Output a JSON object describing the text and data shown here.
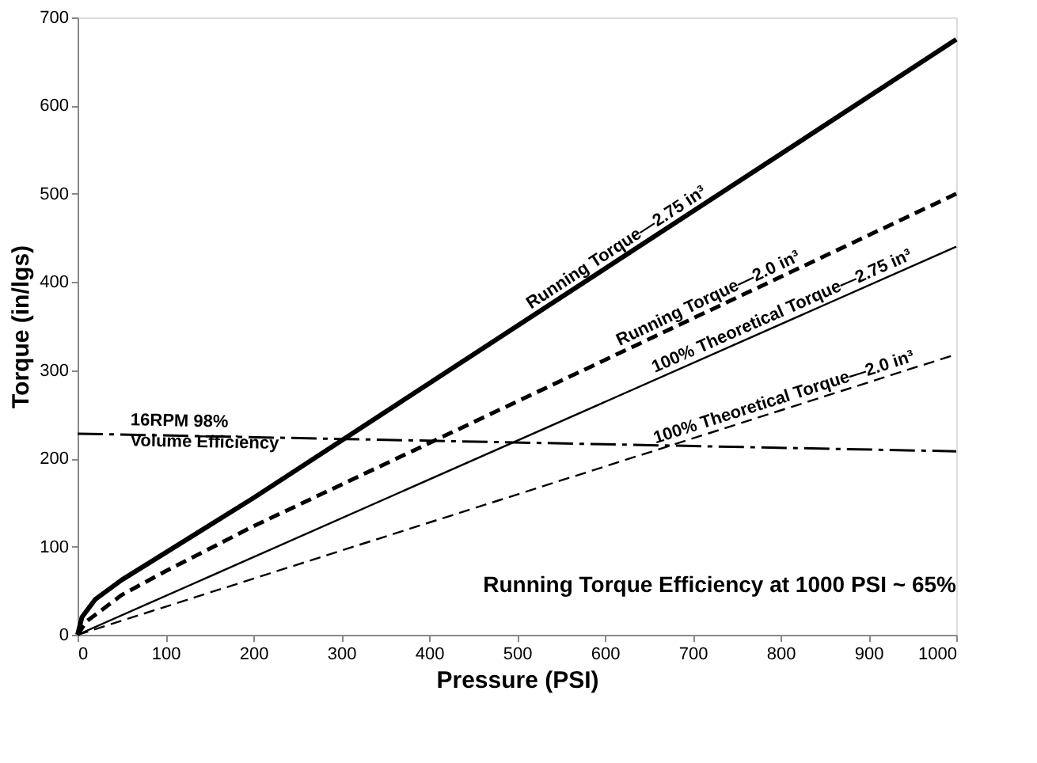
{
  "chart_data": {
    "type": "line",
    "xlabel": "Pressure (PSI)",
    "ylabel": "Torque (in/lgs)",
    "xlim": [
      0,
      1000
    ],
    "xticks": [
      0,
      100,
      200,
      300,
      400,
      500,
      600,
      700,
      800,
      900,
      1000
    ],
    "ylim": [
      0,
      700
    ],
    "yticks": [
      0,
      100,
      200,
      300,
      400,
      500,
      600,
      700
    ],
    "grid": false,
    "marker": "none",
    "series": [
      {
        "name": "Running Torque—2.75 in³",
        "color": "#000000",
        "line_style": "solid",
        "x": [
          0,
          5,
          20,
          50,
          100,
          200,
          1000
        ],
        "values": [
          0,
          20,
          40,
          62,
          93,
          155,
          675
        ]
      },
      {
        "name": "Running Torque—2.0 in³",
        "color": "#000000",
        "line_style": "dashed",
        "x": [
          0,
          10,
          50,
          100,
          200,
          1000
        ],
        "values": [
          0,
          15,
          45,
          72,
          123,
          500
        ]
      },
      {
        "name": "100% Theoretical Torque—2.75 in³",
        "color": "#000000",
        "line_style": "solid",
        "x": [
          0,
          1000
        ],
        "values": [
          0,
          440
        ]
      },
      {
        "name": "100% Theoretical Torque—2.0 in³",
        "color": "#000000",
        "line_style": "dashed",
        "x": [
          0,
          1000
        ],
        "values": [
          0,
          318
        ]
      },
      {
        "name": "16RPM 98%\nVolume Efficiency",
        "color": "#000000",
        "line_style": "dashed",
        "x": [
          0,
          1000
        ],
        "values": [
          228,
          208
        ]
      }
    ],
    "annotations": [
      "Running Torque Efficiency at 1000 PSI ~ 65%"
    ]
  }
}
